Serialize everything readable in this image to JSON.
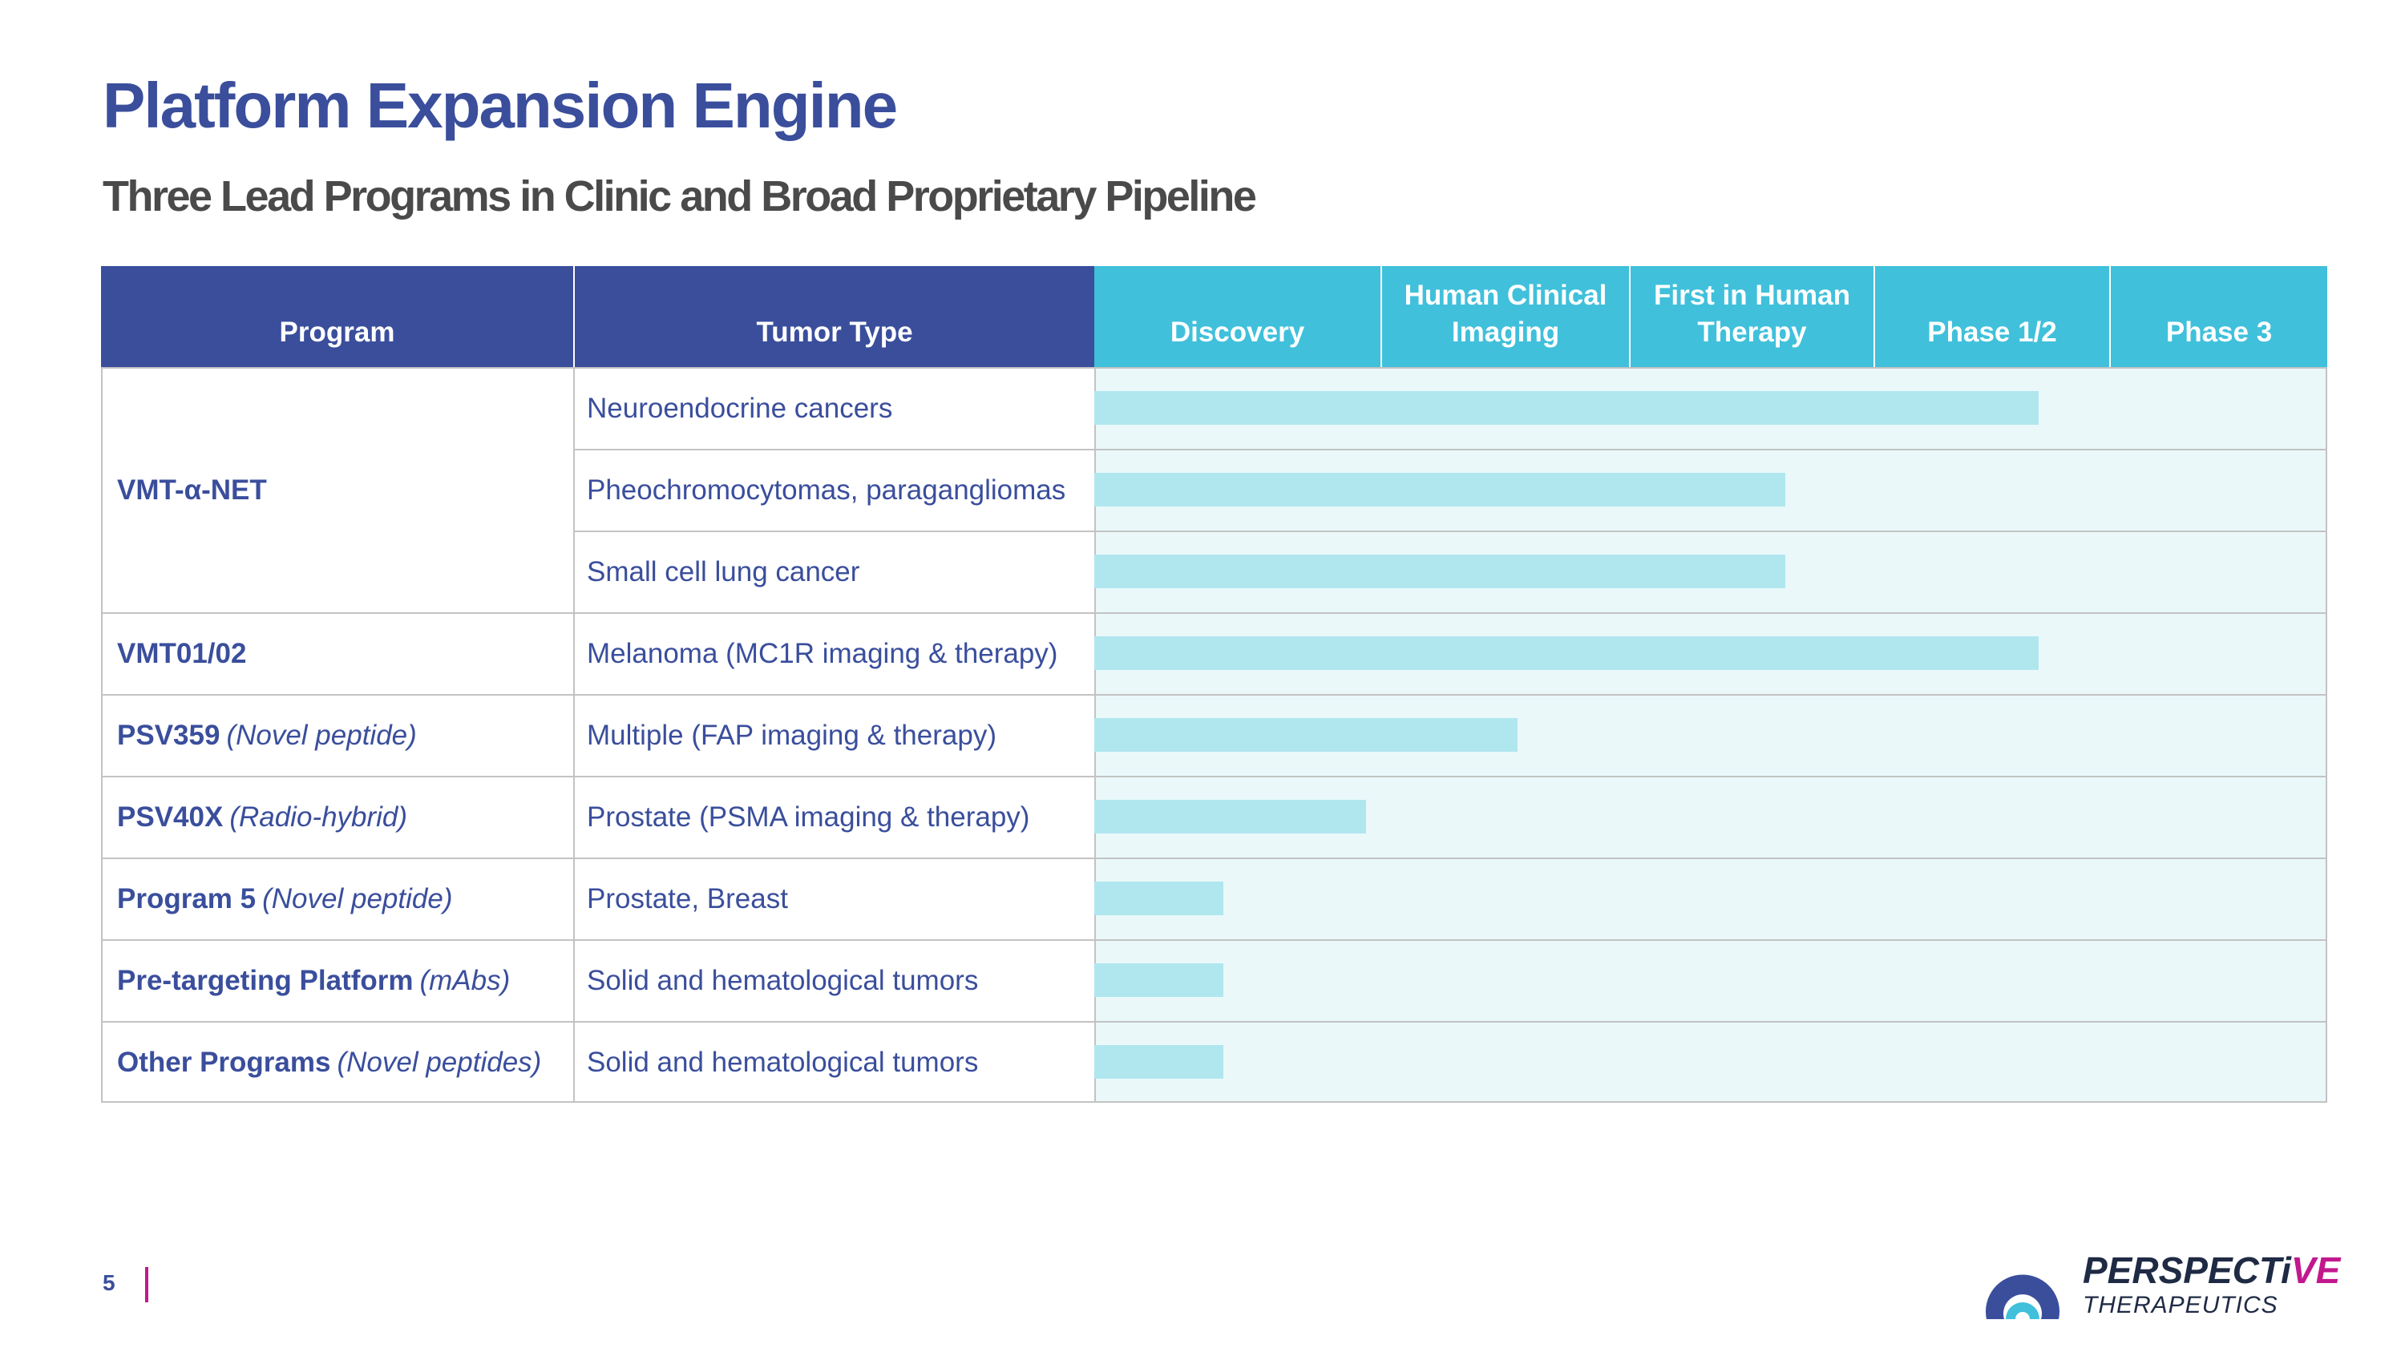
{
  "slide": {
    "title": "Platform Expansion Engine",
    "subtitle": "Three Lead Programs in Clinic and Broad Proprietary Pipeline",
    "page_number": "5"
  },
  "table": {
    "headers": {
      "program": "Program",
      "tumor_type": "Tumor Type",
      "phases": [
        "Discovery",
        "Human Clinical Imaging",
        "First in Human Therapy",
        "Phase 1/2",
        "Phase 3"
      ]
    },
    "programs": [
      {
        "name": "VMT-α-NET",
        "note": ""
      },
      {
        "name": "VMT01/02",
        "note": ""
      },
      {
        "name": "PSV359",
        "note": "(Novel peptide)"
      },
      {
        "name": "PSV40X",
        "note": "(Radio-hybrid)"
      },
      {
        "name": "Program 5",
        "note": "(Novel peptide)"
      },
      {
        "name": "Pre-targeting Platform",
        "note": "(mAbs)"
      },
      {
        "name": "Other Programs",
        "note": "(Novel peptides)"
      }
    ],
    "rows": [
      {
        "tumor": "Neuroendocrine cancers",
        "progress_phases": 3.7
      },
      {
        "tumor": "Pheochromocytomas, paragangliomas",
        "progress_phases": 2.64
      },
      {
        "tumor": "Small cell lung cancer",
        "progress_phases": 2.64
      },
      {
        "tumor": "Melanoma (MC1R imaging & therapy)",
        "progress_phases": 3.7
      },
      {
        "tumor": "Multiple (FAP imaging & therapy)",
        "progress_phases": 1.55
      },
      {
        "tumor": "Prostate (PSMA imaging & therapy)",
        "progress_phases": 0.95
      },
      {
        "tumor": "Prostate, Breast",
        "progress_phases": 0.45
      },
      {
        "tumor": "Solid and hematological tumors",
        "progress_phases": 0.45
      },
      {
        "tumor": "Solid and hematological tumors",
        "progress_phases": 0.45
      }
    ]
  },
  "logo": {
    "word_main": "PERSPECTiVE",
    "word_sub": "THERAPEUTICS"
  },
  "colors": {
    "primary": "#3a4e9c",
    "header_cyan": "#40c0db",
    "bar": "#b0e7ef",
    "phase_bg": "#eaf8fa",
    "accent": "#c2188d"
  }
}
